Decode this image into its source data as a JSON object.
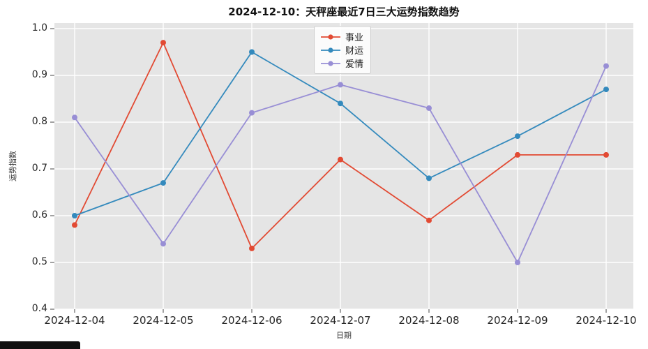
{
  "title": "2024-12-10：天秤座最近7日三大运势指数趋势",
  "chart_data": {
    "type": "line",
    "x": [
      "2024-12-04",
      "2024-12-05",
      "2024-12-06",
      "2024-12-07",
      "2024-12-08",
      "2024-12-09",
      "2024-12-10"
    ],
    "series": [
      {
        "name": "事业",
        "color": "#E24A33",
        "values": [
          0.58,
          0.97,
          0.53,
          0.72,
          0.59,
          0.73,
          0.73
        ]
      },
      {
        "name": "财运",
        "color": "#348ABD",
        "values": [
          0.6,
          0.67,
          0.95,
          0.84,
          0.68,
          0.77,
          0.87
        ]
      },
      {
        "name": "爱情",
        "color": "#988ED5",
        "values": [
          0.81,
          0.54,
          0.82,
          0.88,
          0.83,
          0.5,
          0.92
        ]
      }
    ],
    "xlabel": "日期",
    "ylabel": "运势指数",
    "ylim": [
      0.4,
      1.0
    ],
    "yticks": [
      0.4,
      0.5,
      0.6,
      0.7,
      0.8,
      0.9,
      1.0
    ],
    "grid": true,
    "legend_position": "top-center",
    "plot_bg": "#E5E5E5",
    "grid_color": "#FFFFFF",
    "figure_bg": "#FFFFFF",
    "tick_color": "#262626"
  }
}
